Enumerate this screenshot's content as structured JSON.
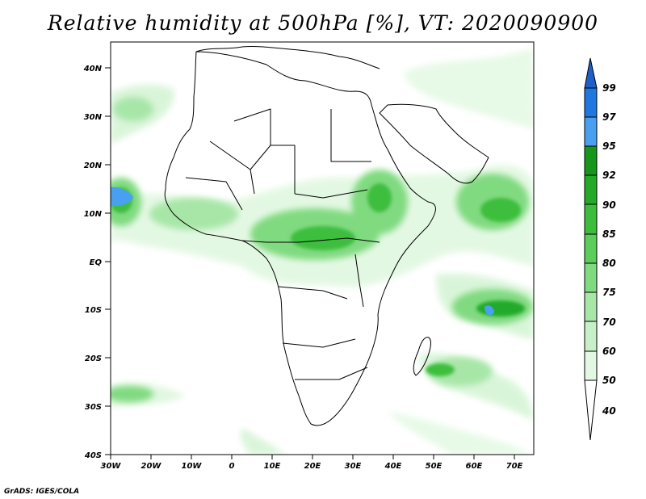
{
  "title": "Relative humidity at 500hPa [%], VT: 2020090900",
  "credit": "GrADS: IGES/COLA",
  "map": {
    "region": "Africa",
    "lon_range": [
      -30,
      75
    ],
    "lat_range": [
      -40,
      45
    ],
    "lat_labels": [
      "40N",
      "30N",
      "20N",
      "10N",
      "EQ",
      "10S",
      "20S",
      "30S",
      "40S"
    ],
    "lon_labels": [
      "30W",
      "20W",
      "10W",
      "0",
      "10E",
      "20E",
      "30E",
      "40E",
      "50E",
      "60E",
      "70E"
    ]
  },
  "colorbar": {
    "labels": [
      "99",
      "97",
      "95",
      "92",
      "90",
      "85",
      "80",
      "75",
      "70",
      "60",
      "50",
      "40"
    ],
    "colors": {
      "top_arrow": "#1f5fc8",
      "c97": "#1e78e0",
      "c95": "#4aa0f0",
      "c92": "#17961c",
      "c90": "#23aa29",
      "c85": "#3cbe3c",
      "c80": "#5acd5a",
      "c75": "#80da80",
      "c70": "#a8e6a8",
      "c60": "#c8f0c8",
      "c50": "#e2f8e2",
      "bottom_arrow": "#ffffff"
    }
  }
}
